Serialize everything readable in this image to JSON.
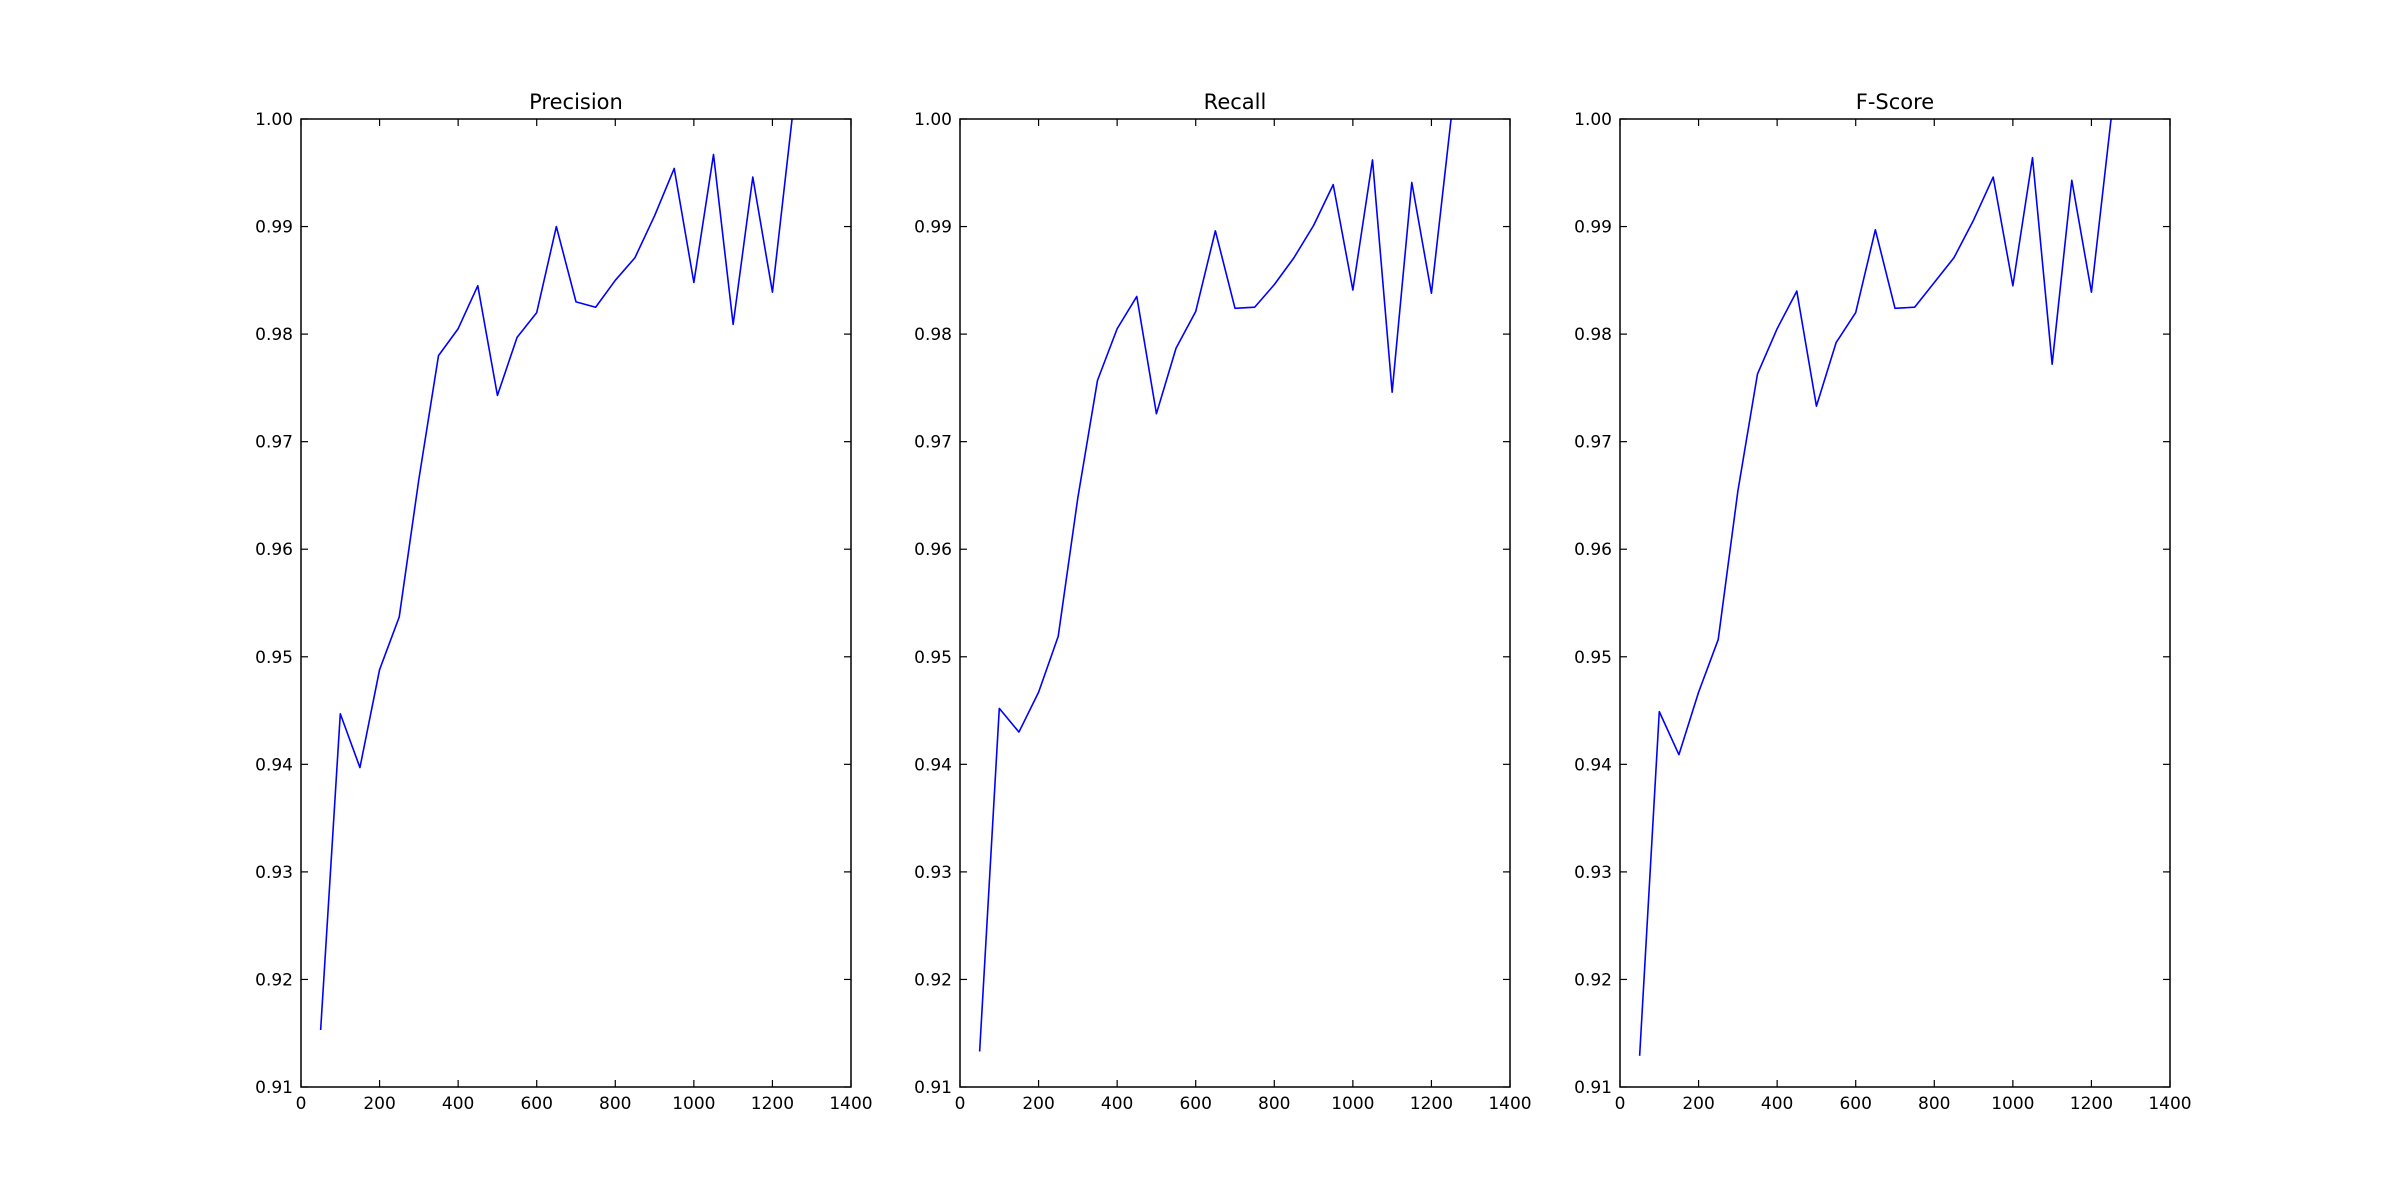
{
  "chart_data": [
    {
      "type": "line",
      "title": "Precision",
      "xlim": [
        0,
        1400
      ],
      "ylim": [
        0.91,
        1.0
      ],
      "xticks": [
        "0",
        "200",
        "400",
        "600",
        "800",
        "1000",
        "1200",
        "1400"
      ],
      "yticks": [
        "0.91",
        "0.92",
        "0.93",
        "0.94",
        "0.95",
        "0.96",
        "0.97",
        "0.98",
        "0.99",
        "1.00"
      ],
      "grid": false,
      "color": "#0000ff",
      "x": [
        50,
        100,
        150,
        200,
        250,
        300,
        350,
        400,
        450,
        500,
        550,
        600,
        650,
        700,
        750,
        800,
        850,
        900,
        950,
        1000,
        1050,
        1100,
        1150,
        1200,
        1250
      ],
      "y": [
        0.9153,
        0.9447,
        0.9397,
        0.9488,
        0.9537,
        0.9665,
        0.978,
        0.9805,
        0.9845,
        0.9743,
        0.9797,
        0.982,
        0.99,
        0.983,
        0.9825,
        0.985,
        0.9871,
        0.991,
        0.9954,
        0.9848,
        0.9967,
        0.9809,
        0.9946,
        0.9839,
        1.0
      ]
    },
    {
      "type": "line",
      "title": "Recall",
      "xlim": [
        0,
        1400
      ],
      "ylim": [
        0.91,
        1.0
      ],
      "xticks": [
        "0",
        "200",
        "400",
        "600",
        "800",
        "1000",
        "1200",
        "1400"
      ],
      "yticks": [
        "0.91",
        "0.92",
        "0.93",
        "0.94",
        "0.95",
        "0.96",
        "0.97",
        "0.98",
        "0.99",
        "1.00"
      ],
      "grid": false,
      "color": "#0000ff",
      "x": [
        50,
        100,
        150,
        200,
        250,
        300,
        350,
        400,
        450,
        500,
        550,
        600,
        650,
        700,
        750,
        800,
        850,
        900,
        950,
        1000,
        1050,
        1100,
        1150,
        1200,
        1250
      ],
      "y": [
        0.9133,
        0.9452,
        0.943,
        0.9467,
        0.9519,
        0.9648,
        0.9757,
        0.9805,
        0.9835,
        0.9726,
        0.9787,
        0.9821,
        0.9896,
        0.9824,
        0.9825,
        0.9846,
        0.9871,
        0.9901,
        0.9939,
        0.9841,
        0.9962,
        0.9746,
        0.9941,
        0.9838,
        1.0
      ]
    },
    {
      "type": "line",
      "title": "F-Score",
      "xlim": [
        0,
        1400
      ],
      "ylim": [
        0.91,
        1.0
      ],
      "xticks": [
        "0",
        "200",
        "400",
        "600",
        "800",
        "1000",
        "1200",
        "1400"
      ],
      "yticks": [
        "0.91",
        "0.92",
        "0.93",
        "0.94",
        "0.95",
        "0.96",
        "0.97",
        "0.98",
        "0.99",
        "1.00"
      ],
      "grid": false,
      "color": "#0000ff",
      "x": [
        50,
        100,
        150,
        200,
        250,
        300,
        350,
        400,
        450,
        500,
        550,
        600,
        650,
        700,
        750,
        800,
        850,
        900,
        950,
        1000,
        1050,
        1100,
        1150,
        1200,
        1250
      ],
      "y": [
        0.9129,
        0.9449,
        0.9409,
        0.9467,
        0.9516,
        0.9654,
        0.9763,
        0.9805,
        0.984,
        0.9733,
        0.9792,
        0.982,
        0.9897,
        0.9824,
        0.9825,
        0.9848,
        0.9871,
        0.9906,
        0.9946,
        0.9845,
        0.9964,
        0.9772,
        0.9943,
        0.9839,
        1.0
      ]
    }
  ]
}
